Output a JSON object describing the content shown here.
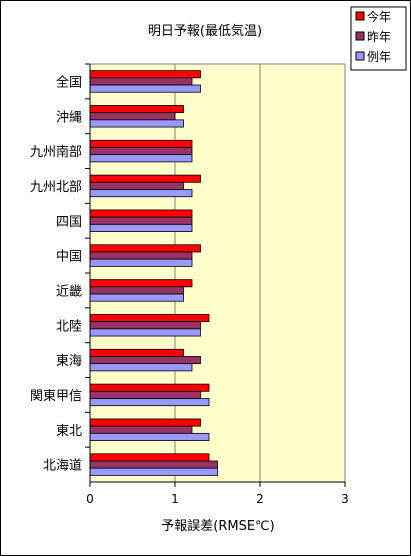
{
  "chart_data": {
    "type": "bar",
    "orientation": "horizontal",
    "title": "明日予報(最低気温)",
    "xlabel": "予報誤差(RMSE℃)",
    "ylabel": "",
    "xlim": [
      0,
      3
    ],
    "x_ticks": [
      "0",
      "1",
      "2",
      "3"
    ],
    "categories": [
      "全国",
      "沖縄",
      "九州南部",
      "九州北部",
      "四国",
      "中国",
      "近畿",
      "北陸",
      "東海",
      "関東甲信",
      "東北",
      "北海道"
    ],
    "series": [
      {
        "name": "今年",
        "color": "#ff0000",
        "values": [
          1.3,
          1.1,
          1.2,
          1.3,
          1.2,
          1.3,
          1.2,
          1.4,
          1.1,
          1.4,
          1.3,
          1.4
        ]
      },
      {
        "name": "昨年",
        "color": "#993366",
        "values": [
          1.2,
          1.0,
          1.2,
          1.1,
          1.2,
          1.2,
          1.1,
          1.3,
          1.3,
          1.3,
          1.2,
          1.5
        ]
      },
      {
        "name": "例年",
        "color": "#9999ff",
        "values": [
          1.3,
          1.1,
          1.2,
          1.2,
          1.2,
          1.2,
          1.1,
          1.3,
          1.2,
          1.4,
          1.4,
          1.5
        ]
      }
    ],
    "plot_background": "#ffffcc",
    "grid": "vertical major lines",
    "legend_position": "top-right"
  }
}
